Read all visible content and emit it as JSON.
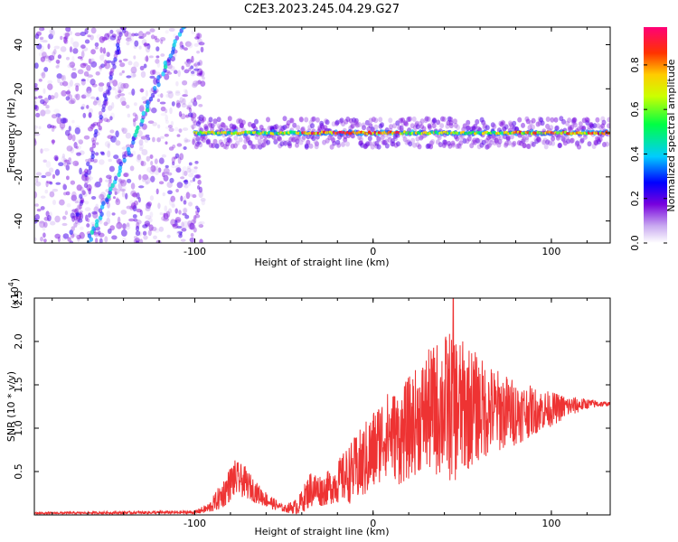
{
  "figure": {
    "title": "C2E3.2023.245.04.29.G27"
  },
  "colors": {
    "snr_line": "#ee3333",
    "axis": "#000000",
    "background": "#ffffff"
  },
  "chart_data": [
    {
      "type": "heatmap",
      "name": "spectrogram",
      "xlabel": "Height of straight line (km)",
      "ylabel": "Frequency (Hz)",
      "xlim": [
        -190,
        133
      ],
      "ylim": [
        -50,
        48
      ],
      "xticks": [
        -100,
        0,
        100
      ],
      "xtick_labels": [
        "-100",
        "0",
        "100"
      ],
      "yticks": [
        -40,
        -20,
        0,
        20,
        40
      ],
      "ytick_labels": [
        "-40",
        "-20",
        "0",
        "20",
        "40"
      ],
      "colorbar": {
        "label": "Normalized spectral amplitude",
        "range": [
          0,
          0.97
        ],
        "ticks": [
          0.0,
          0.2,
          0.4,
          0.6,
          0.8
        ],
        "tick_labels": [
          "0.0",
          "0.2",
          "0.4",
          "0.6",
          "0.8"
        ]
      },
      "features": [
        {
          "kind": "noise-region",
          "x_range": [
            -190,
            -95
          ],
          "y_range": [
            -50,
            48
          ],
          "amplitude": 0.18
        },
        {
          "kind": "diagonal-trace",
          "from": [
            -160,
            -50
          ],
          "to": [
            -107,
            48
          ],
          "amplitude": 0.35
        },
        {
          "kind": "diagonal-trace",
          "from": [
            -170,
            -50
          ],
          "to": [
            -140,
            48
          ],
          "amplitude": 0.2
        },
        {
          "kind": "signal-band",
          "x_range": [
            -100,
            133
          ],
          "center_hz": 0,
          "width_hz": 5,
          "peak_amplitude": 0.95
        }
      ]
    },
    {
      "type": "line",
      "name": "snr",
      "xlabel": "Height of straight line (km)",
      "ylabel": "SNR (10 * v/v)",
      "scale_label": "(x10",
      "scale_exponent": "4",
      "xlim": [
        -190,
        133
      ],
      "ylim": [
        0,
        2.5
      ],
      "xticks": [
        -100,
        0,
        100
      ],
      "xtick_labels": [
        "-100",
        "0",
        "100"
      ],
      "yticks": [
        0.5,
        1.0,
        1.5,
        2.0,
        2.5
      ],
      "ytick_labels": [
        "0.5",
        "1.0",
        "1.5",
        "2.0",
        "2.5"
      ],
      "envelope": {
        "x": [
          -190,
          -100,
          -92,
          -85,
          -78,
          -72,
          -65,
          -58,
          -50,
          -42,
          -35,
          -28,
          -22,
          -15,
          -8,
          0,
          5,
          10,
          15,
          20,
          25,
          30,
          35,
          40,
          45,
          50,
          55,
          60,
          70,
          80,
          90,
          100,
          110,
          120,
          133
        ],
        "mean": [
          0.02,
          0.03,
          0.08,
          0.22,
          0.42,
          0.38,
          0.25,
          0.15,
          0.07,
          0.1,
          0.3,
          0.28,
          0.35,
          0.45,
          0.55,
          0.72,
          0.9,
          0.95,
          0.88,
          1.0,
          1.1,
          1.18,
          1.22,
          1.25,
          1.26,
          1.22,
          1.25,
          1.22,
          1.2,
          1.18,
          1.2,
          1.22,
          1.25,
          1.28,
          1.28
        ],
        "spread": [
          0.01,
          0.02,
          0.06,
          0.16,
          0.22,
          0.18,
          0.12,
          0.08,
          0.04,
          0.1,
          0.22,
          0.18,
          0.22,
          0.32,
          0.42,
          0.5,
          0.48,
          0.5,
          0.55,
          0.6,
          0.62,
          0.7,
          0.78,
          0.85,
          0.9,
          0.8,
          0.7,
          0.6,
          0.48,
          0.38,
          0.28,
          0.2,
          0.12,
          0.06,
          0.02
        ],
        "peak": {
          "x": 45,
          "y": 2.5
        }
      }
    }
  ]
}
